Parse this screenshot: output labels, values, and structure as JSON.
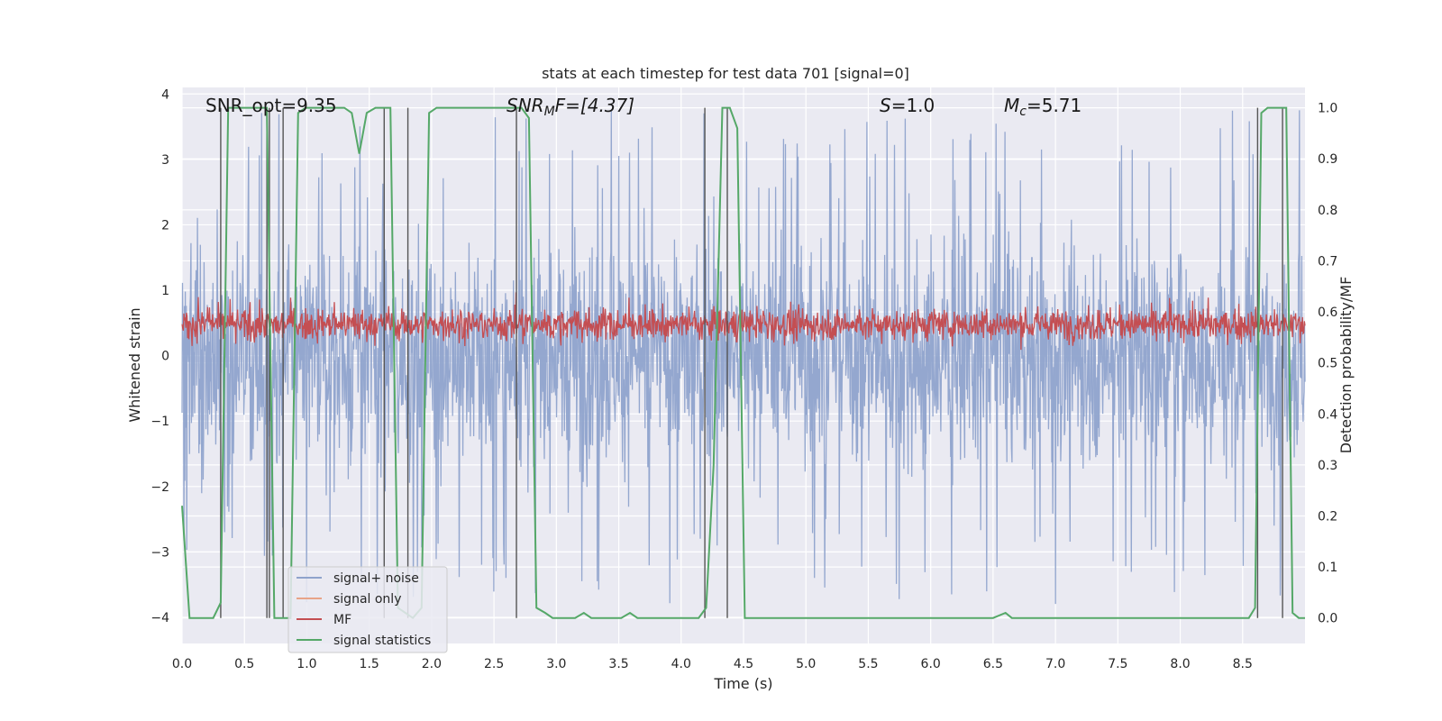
{
  "chart_data": {
    "type": "line",
    "title": "stats at each timestep for test data 701 [signal=0]",
    "xlabel": "Time (s)",
    "ylabel_left": "Whitened strain",
    "ylabel_right": "Detection probability/MF",
    "xlim": [
      0.0,
      9.0
    ],
    "ylim_left": [
      -4.4,
      4.1
    ],
    "ylim_right": [
      -0.05,
      1.04
    ],
    "x_ticks": [
      "0.0",
      "0.5",
      "1.0",
      "1.5",
      "2.0",
      "2.5",
      "3.0",
      "3.5",
      "4.0",
      "4.5",
      "5.0",
      "5.5",
      "6.0",
      "6.5",
      "7.0",
      "7.5",
      "8.0",
      "8.5"
    ],
    "y_ticks_left": [
      "4",
      "3",
      "2",
      "1",
      "0",
      "−1",
      "−2",
      "−3",
      "−4"
    ],
    "y_ticks_right": [
      "1.0",
      "0.9",
      "0.8",
      "0.7",
      "0.6",
      "0.5",
      "0.4",
      "0.3",
      "0.2",
      "0.1",
      "0.0"
    ],
    "grid": true,
    "legend_position": "lower-left",
    "annotations": {
      "snr_opt": "SNR_opt=9.35",
      "snr_mf_base": "SNR",
      "snr_mf_sub": "M",
      "snr_mf_rest": "F=[4.37]",
      "s_var": "S",
      "s_rest": "=1.0",
      "mc_var": "M",
      "mc_sub": "c",
      "mc_rest": "=5.71"
    },
    "colors": {
      "background": "#eaeaf2",
      "noise": "#8fa3cc",
      "signal_only": "#e8a488",
      "mf": "#c44e52",
      "statistics": "#55a868",
      "vlines": "#555555"
    },
    "series": [
      {
        "name": "signal+ noise",
        "axis": "left",
        "description": "whitened noisy strain, approx -2.5..2.6 with spikes to ±3.7"
      },
      {
        "name": "signal only",
        "axis": "left"
      },
      {
        "name": "MF",
        "axis": "right",
        "range": [
          0.52,
          0.63
        ]
      },
      {
        "name": "signal statistics",
        "axis": "right",
        "x": [
          0.0,
          0.06,
          0.12,
          0.18,
          0.25,
          0.31,
          0.37,
          0.43,
          0.5,
          0.56,
          0.62,
          0.68,
          0.74,
          0.8,
          0.87,
          0.93,
          0.99,
          1.05,
          1.11,
          1.18,
          1.24,
          1.3,
          1.36,
          1.42,
          1.48,
          1.55,
          1.61,
          1.67,
          1.73,
          1.79,
          1.85,
          1.92,
          1.98,
          2.04,
          2.1,
          2.16,
          2.23,
          2.29,
          2.35,
          2.41,
          2.47,
          2.54,
          2.6,
          2.66,
          2.72,
          2.78,
          2.84,
          2.91,
          2.97,
          3.03,
          3.09,
          3.15,
          3.22,
          3.28,
          3.34,
          3.4,
          3.46,
          3.52,
          3.59,
          3.65,
          3.71,
          3.77,
          3.83,
          3.9,
          3.96,
          4.02,
          4.08,
          4.14,
          4.2,
          4.26,
          4.33,
          4.39,
          4.45,
          4.51,
          4.57,
          4.64,
          4.7,
          4.76,
          4.82,
          4.88,
          4.94,
          5.0,
          5.5,
          6.0,
          6.5,
          6.6,
          6.65,
          6.7,
          7.0,
          7.5,
          7.7,
          7.75,
          7.8,
          8.0,
          8.5,
          8.55,
          8.6,
          8.65,
          8.7,
          8.75,
          8.8,
          8.85,
          8.9,
          8.95,
          9.0
        ],
        "values": [
          0.22,
          0.0,
          0.0,
          0.0,
          0.0,
          0.03,
          1.0,
          1.0,
          1.0,
          1.0,
          1.0,
          1.0,
          0.0,
          0.0,
          0.0,
          0.99,
          1.0,
          1.0,
          1.0,
          1.0,
          1.0,
          1.0,
          0.99,
          0.91,
          0.99,
          1.0,
          1.0,
          1.0,
          0.02,
          0.01,
          0.0,
          0.02,
          0.99,
          1.0,
          1.0,
          1.0,
          1.0,
          1.0,
          1.0,
          1.0,
          1.0,
          1.0,
          1.0,
          1.0,
          1.0,
          0.98,
          0.02,
          0.01,
          0.0,
          0.0,
          0.0,
          0.0,
          0.01,
          0.0,
          0.0,
          0.0,
          0.0,
          0.0,
          0.01,
          0.0,
          0.0,
          0.0,
          0.0,
          0.0,
          0.0,
          0.0,
          0.0,
          0.0,
          0.02,
          0.3,
          1.0,
          1.0,
          0.96,
          0.0,
          0.0,
          0.0,
          0.0,
          0.0,
          0.0,
          0.0,
          0.0,
          0.0,
          0.0,
          0.0,
          0.0,
          0.01,
          0.0,
          0.0,
          0.0,
          0.0,
          0.0,
          0.0,
          0.0,
          0.0,
          0.0,
          0.0,
          0.02,
          0.99,
          1.0,
          1.0,
          1.0,
          1.0,
          0.01,
          0.0,
          0.0
        ]
      }
    ],
    "vertical_lines": [
      0.31,
      0.68,
      0.7,
      0.81,
      1.62,
      1.81,
      2.68,
      4.19,
      4.37,
      8.62,
      8.82
    ]
  }
}
